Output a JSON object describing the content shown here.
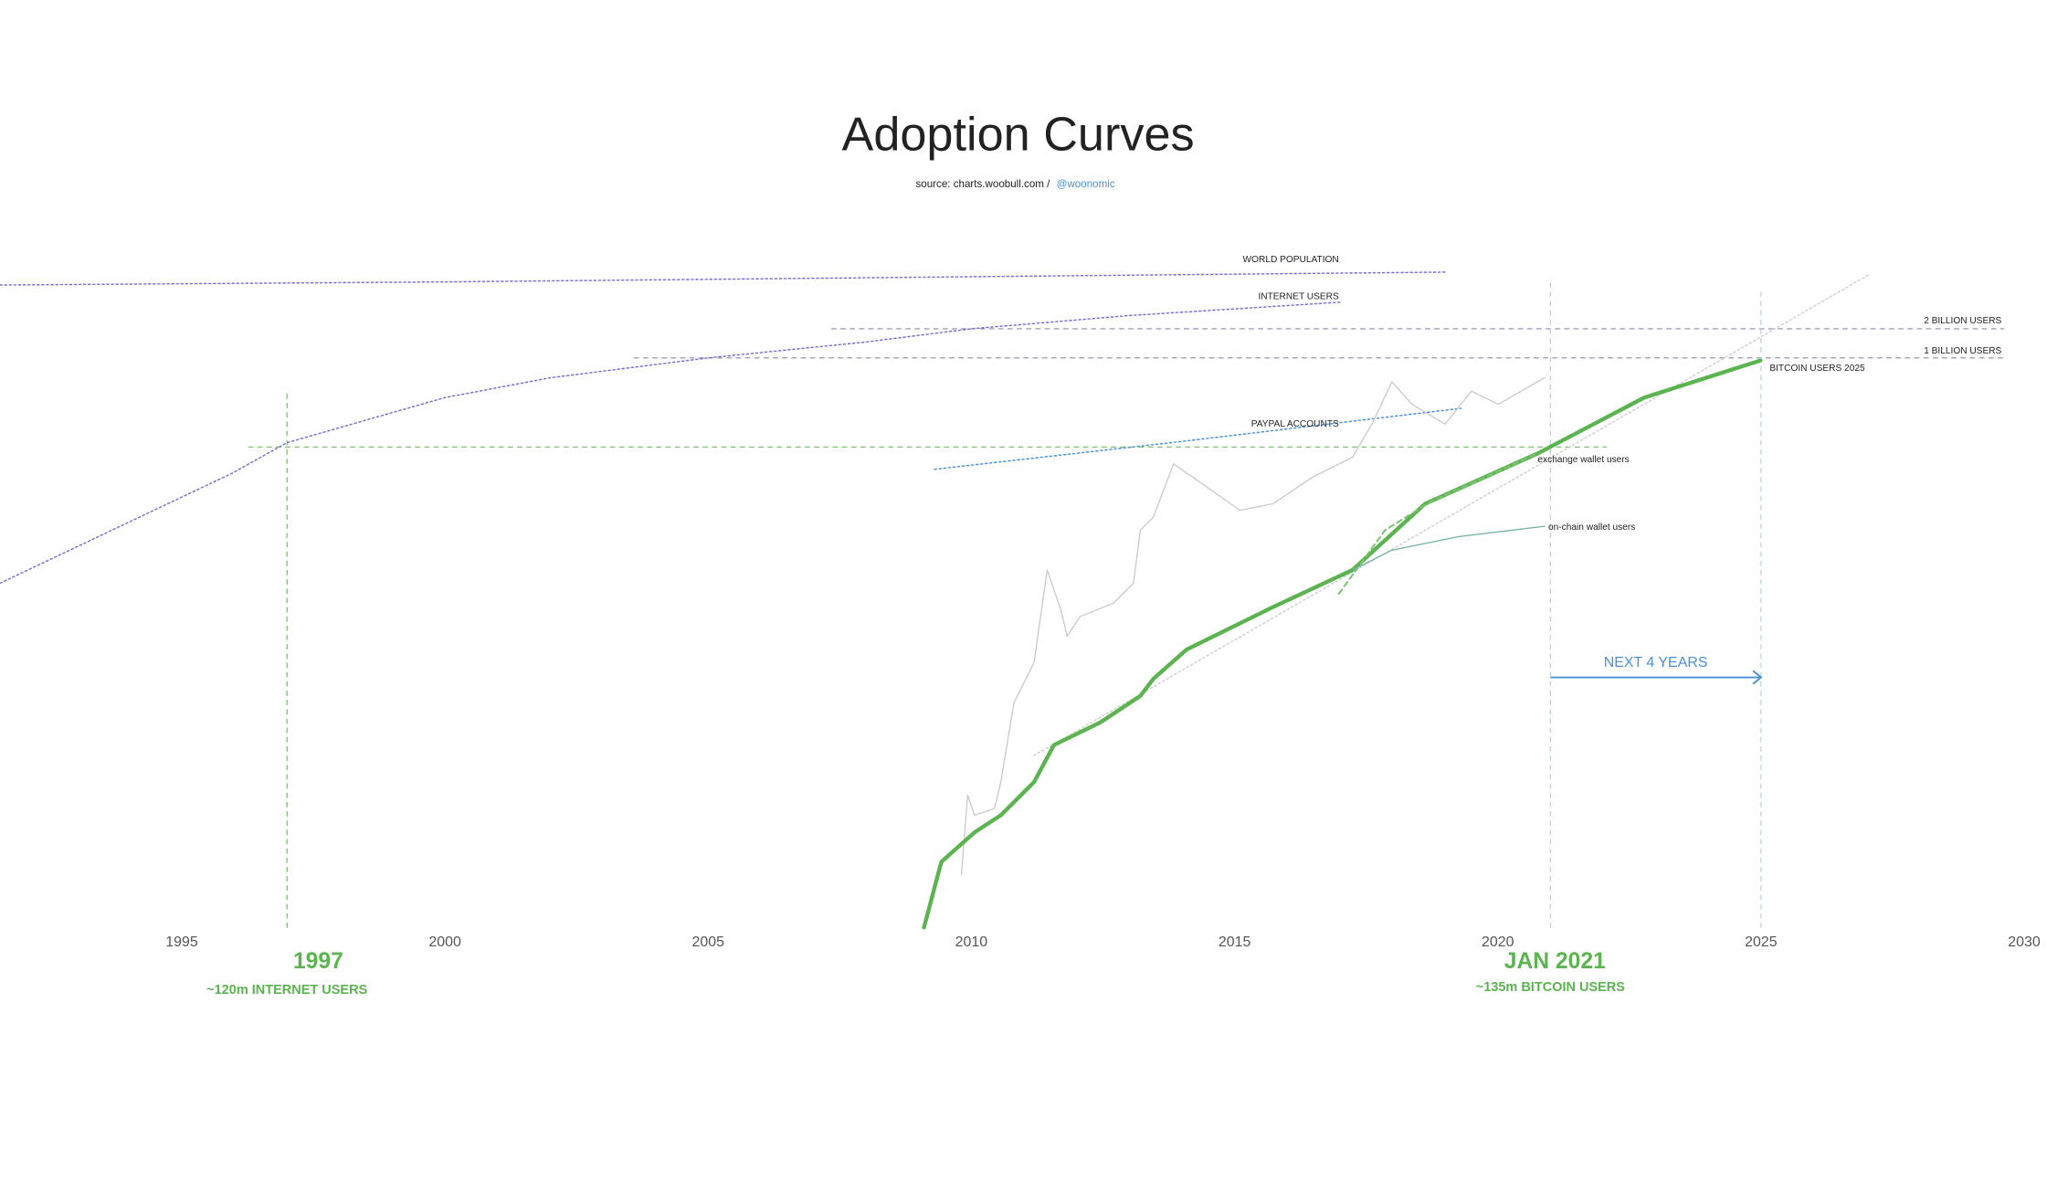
{
  "chart_data": {
    "type": "line",
    "title": "Adoption Curves",
    "source": "source: charts.woobull.com /",
    "source_handle": "@woonomic",
    "log_y": true,
    "xlim": [
      1991.55,
      2030.83
    ],
    "xticks": [
      1995,
      2000,
      2005,
      2010,
      2015,
      2020,
      2025,
      2030
    ],
    "ylim": [
      0.001,
      100000
    ],
    "series": [
      {
        "name": "WORLD POPULATION",
        "color": "#7b6fd0",
        "style": "dotted",
        "x": [
          1991.55,
          2000,
          2010,
          2019
        ],
        "values": [
          5660,
          6100,
          6900,
          7700
        ]
      },
      {
        "name": "INTERNET USERS",
        "color": "#7b6fd0",
        "style": "dotted",
        "x": [
          1991.55,
          1995.95,
          1997,
          2000,
          2002,
          2005,
          2008,
          2010,
          2013,
          2017
        ],
        "values": [
          4.7,
          64,
          133,
          389,
          623,
          1000,
          1460,
          2000,
          2740,
          3760
        ]
      },
      {
        "name": "PAYPAL ACCOUNTS",
        "color": "#4a90d9",
        "style": "dotted",
        "x": [
          2009.3,
          2014,
          2019.3
        ],
        "values": [
          70.6,
          137,
          301
        ]
      },
      {
        "values": [
          0.0777,
          7300
        ],
        "x": [
          2011.19,
          2027.06
        ],
        "color": "#cfcfcf",
        "style": "dotted"
      },
      {
        "color": "#c9c9c9",
        "style": "solid",
        "x": [
          2009.81,
          2009.93,
          2010.06,
          2010.44,
          2010.56,
          2010.81,
          2011.19,
          2011.44,
          2011.7,
          2011.82,
          2012.07,
          2012.7,
          2013.08,
          2013.21,
          2013.46,
          2013.84,
          2014.21,
          2015.1,
          2015.73,
          2016.48,
          2017.24,
          2017.61,
          2017.99,
          2018.37,
          2019.0,
          2019.5,
          2020.01,
          2020.89
        ],
        "values": [
          0.00455,
          0.0301,
          0.0188,
          0.022,
          0.0413,
          0.274,
          0.707,
          6.43,
          2.5,
          1.33,
          2.13,
          2.92,
          4.69,
          16.6,
          22.7,
          80.2,
          58.5,
          26.6,
          31.1,
          58.5,
          93.9,
          207,
          567,
          332,
          207,
          455,
          332,
          623
        ]
      },
      {
        "name": "BITCOIN USERS 2025",
        "color": "#5bb450",
        "style": "thick",
        "x": [
          2009.1,
          2009.43,
          2010.06,
          2010.56,
          2011.19,
          2011.57,
          2012.45,
          2013.21,
          2013.46,
          2014.09,
          2015.73,
          2017.24,
          2018.62,
          2020.76,
          2022.78,
          2024.99
        ],
        "values": [
          0.0013,
          0.0062,
          0.0125,
          0.0188,
          0.0413,
          0.1,
          0.171,
          0.321,
          0.484,
          0.969,
          2.66,
          6.43,
          31.1,
          103,
          388,
          940
        ]
      },
      {
        "name": "exchange wallet users",
        "color": "#7cc470",
        "style": "dashed",
        "x": [
          2016.98,
          2017.86,
          2018.75,
          2020.76
        ],
        "values": [
          3.65,
          16.6,
          33.2,
          103
        ]
      },
      {
        "name": "on-chain wallet users",
        "color": "#74b3a4",
        "style": "solid",
        "x": [
          2017.24,
          2017.99,
          2019.25,
          2020.89
        ],
        "values": [
          6.43,
          10.3,
          14.2,
          18.2
        ]
      }
    ],
    "reference_lines": [
      {
        "label": "2 BILLION USERS",
        "value": 2000,
        "color": "#8a8aa8"
      },
      {
        "label": "1 BILLION USERS",
        "value": 1000,
        "color": "#8a8aa8"
      }
    ],
    "markers": [
      {
        "label": "1997",
        "note": "~120m INTERNET USERS",
        "x": 1997,
        "value": 120,
        "color": "#5bb450",
        "line_color": "#7cc470"
      },
      {
        "label": "JAN 2021",
        "note": "~135m BITCOIN USERS",
        "x": 2021,
        "value": 135,
        "color": "#5bb450",
        "line_color": "#a8dde8"
      }
    ],
    "period": {
      "label": "NEXT 4 YEARS",
      "x": [
        2021,
        2025
      ],
      "color": "#4a90d9",
      "line_color": "#a8dde8"
    }
  }
}
